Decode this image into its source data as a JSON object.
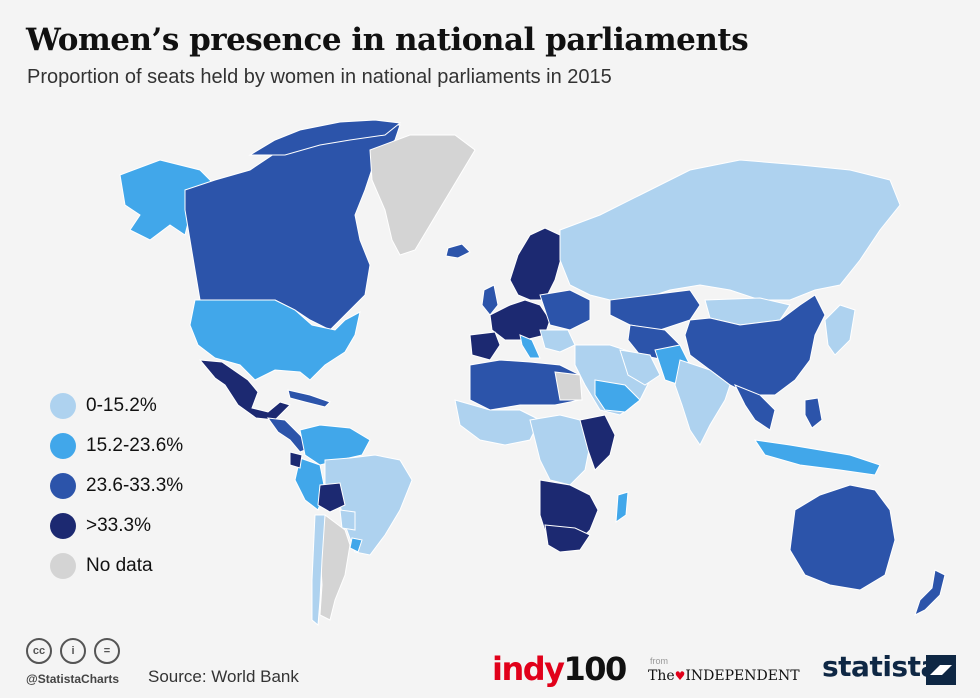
{
  "header": {
    "title": "Women’s presence in national parliaments",
    "subtitle": "Proportion of seats held by women in national parliaments in 2015"
  },
  "legend": [
    {
      "label": "0-15.2%",
      "color": "#aed2ef"
    },
    {
      "label": "15.2-23.6%",
      "color": "#41a7ea"
    },
    {
      "label": "23.6-33.3%",
      "color": "#2c54aa"
    },
    {
      "label": ">33.3%",
      "color": "#1c2971"
    },
    {
      "label": "No data",
      "color": "#d4d4d4"
    }
  ],
  "map_regions": [
    {
      "name": "Canada",
      "bin": "23.6-33.3%"
    },
    {
      "name": "United States",
      "bin": "15.2-23.6%"
    },
    {
      "name": "Mexico",
      "bin": ">33.3%"
    },
    {
      "name": "Greenland",
      "bin": "No data"
    },
    {
      "name": "Brazil",
      "bin": "0-15.2%"
    },
    {
      "name": "Bolivia",
      "bin": ">33.3%"
    },
    {
      "name": "Argentina",
      "bin": "No data"
    },
    {
      "name": "Russia",
      "bin": "0-15.2%"
    },
    {
      "name": "China",
      "bin": "23.6-33.3%"
    },
    {
      "name": "India",
      "bin": "0-15.2%"
    },
    {
      "name": "Australia",
      "bin": "23.6-33.3%"
    },
    {
      "name": "New Zealand",
      "bin": "23.6-33.3%"
    },
    {
      "name": "South Africa",
      "bin": ">33.3%"
    },
    {
      "name": "Sweden",
      "bin": ">33.3%"
    },
    {
      "name": "Libya",
      "bin": "No data"
    }
  ],
  "footer": {
    "cc_icons": [
      "cc",
      "i",
      "="
    ],
    "handle": "@StatistaCharts",
    "source": "Source: World Bank",
    "indy_brand": "indy",
    "indy_number": "100",
    "from": "from",
    "independent_prefix": "The",
    "independent_name": "INDEPENDENT",
    "statista": "statista"
  }
}
